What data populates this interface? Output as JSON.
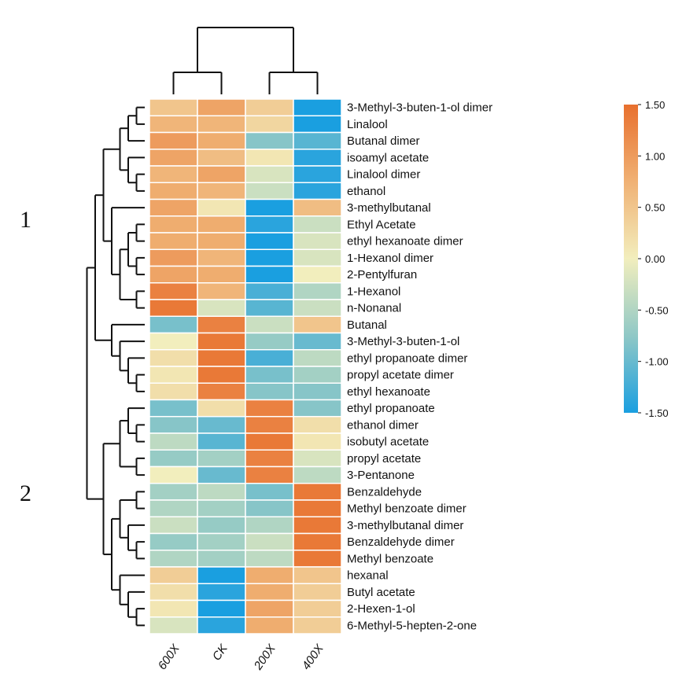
{
  "chart_data": {
    "type": "heatmap",
    "columns": [
      "600X",
      "CK",
      "200X",
      "400X"
    ],
    "rows": [
      "3-Methyl-3-buten-1-ol dimer",
      "Linalool",
      "Butanal dimer",
      "isoamyl acetate",
      "Linalool dimer",
      "ethanol",
      "3-methylbutanal",
      "Ethyl Acetate",
      "ethyl hexanoate dimer",
      "1-Hexanol dimer",
      "2-Pentylfuran",
      "1-Hexanol",
      "n-Nonanal",
      "Butanal",
      "3-Methyl-3-buten-1-ol",
      "ethyl propanoate dimer",
      "propyl acetate dimer",
      "ethyl hexanoate",
      "ethyl propanoate",
      "ethanol dimer",
      "isobutyl acetate",
      "propyl acetate",
      "3-Pentanone",
      "Benzaldehyde",
      "Methyl benzoate dimer",
      "3-methylbutanal dimer",
      "Benzaldehyde dimer",
      "Methyl benzoate",
      "hexanal",
      "Butyl acetate",
      "2-Hexen-1-ol",
      "6-Methyl-5-hepten-2-one"
    ],
    "values": [
      [
        0.5,
        0.9,
        0.4,
        -1.5
      ],
      [
        0.7,
        0.7,
        0.3,
        -1.5
      ],
      [
        1.0,
        0.8,
        -0.8,
        -1.1
      ],
      [
        0.9,
        0.6,
        0.1,
        -1.4
      ],
      [
        0.7,
        0.9,
        -0.2,
        -1.4
      ],
      [
        0.8,
        0.7,
        -0.3,
        -1.4
      ],
      [
        0.9,
        0.1,
        -1.5,
        0.6
      ],
      [
        0.8,
        0.8,
        -1.4,
        -0.3
      ],
      [
        0.8,
        0.8,
        -1.5,
        -0.2
      ],
      [
        1.0,
        0.7,
        -1.5,
        -0.2
      ],
      [
        0.9,
        0.8,
        -1.5,
        0.0
      ],
      [
        1.3,
        0.7,
        -1.2,
        -0.5
      ],
      [
        1.4,
        -0.2,
        -1.1,
        -0.3
      ],
      [
        -0.9,
        1.3,
        -0.3,
        0.5
      ],
      [
        0.0,
        1.4,
        -0.7,
        -1.0
      ],
      [
        0.2,
        1.4,
        -1.2,
        -0.4
      ],
      [
        0.1,
        1.4,
        -0.9,
        -0.6
      ],
      [
        0.2,
        1.3,
        -0.8,
        -0.8
      ],
      [
        -0.9,
        0.2,
        1.3,
        -0.8
      ],
      [
        -0.8,
        -1.0,
        1.3,
        0.2
      ],
      [
        -0.4,
        -1.1,
        1.4,
        0.1
      ],
      [
        -0.7,
        -0.6,
        1.3,
        -0.2
      ],
      [
        0.0,
        -1.0,
        1.3,
        -0.4
      ],
      [
        -0.6,
        -0.4,
        -0.9,
        1.4
      ],
      [
        -0.5,
        -0.6,
        -0.8,
        1.4
      ],
      [
        -0.3,
        -0.7,
        -0.5,
        1.4
      ],
      [
        -0.7,
        -0.6,
        -0.3,
        1.4
      ],
      [
        -0.5,
        -0.6,
        -0.4,
        1.4
      ],
      [
        0.4,
        -1.5,
        0.8,
        0.5
      ],
      [
        0.2,
        -1.4,
        0.8,
        0.4
      ],
      [
        0.1,
        -1.5,
        0.9,
        0.4
      ],
      [
        -0.2,
        -1.4,
        0.8,
        0.4
      ]
    ],
    "scale": {
      "min": -1.5,
      "max": 1.5,
      "ticks": [
        "1.50",
        "1.00",
        "0.50",
        "0.00",
        "-0.50",
        "-1.00",
        "-1.50"
      ],
      "colors": [
        "#1a9fe0",
        "#8fc8c6",
        "#f2eebd",
        "#f0b174",
        "#e8702e"
      ]
    },
    "group_labels": [
      "1",
      "2"
    ],
    "legend_position": "right"
  }
}
